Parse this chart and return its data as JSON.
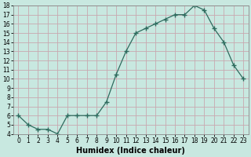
{
  "xlabel": "Humidex (Indice chaleur)",
  "x_values": [
    0,
    1,
    2,
    3,
    4,
    5,
    6,
    7,
    8,
    9,
    10,
    11,
    12,
    13,
    14,
    15,
    16,
    17,
    18,
    19,
    20,
    21,
    22,
    23
  ],
  "y_values": [
    6,
    5,
    4.5,
    4.5,
    4,
    6,
    6,
    6,
    6,
    7.5,
    10.5,
    13,
    15,
    15.5,
    16,
    16.5,
    17,
    17,
    18,
    17.5,
    15.5,
    14,
    11.5,
    10
  ],
  "ylim": [
    4,
    18
  ],
  "yticks": [
    4,
    5,
    6,
    7,
    8,
    9,
    10,
    11,
    12,
    13,
    14,
    15,
    16,
    17,
    18
  ],
  "line_color": "#2e6b5e",
  "marker": "+",
  "marker_size": 4,
  "bg_color": "#c8e8e0",
  "grid_color": "#c8a8b0",
  "axes_color": "#888888",
  "tick_fontsize": 5.5,
  "label_fontsize": 7
}
